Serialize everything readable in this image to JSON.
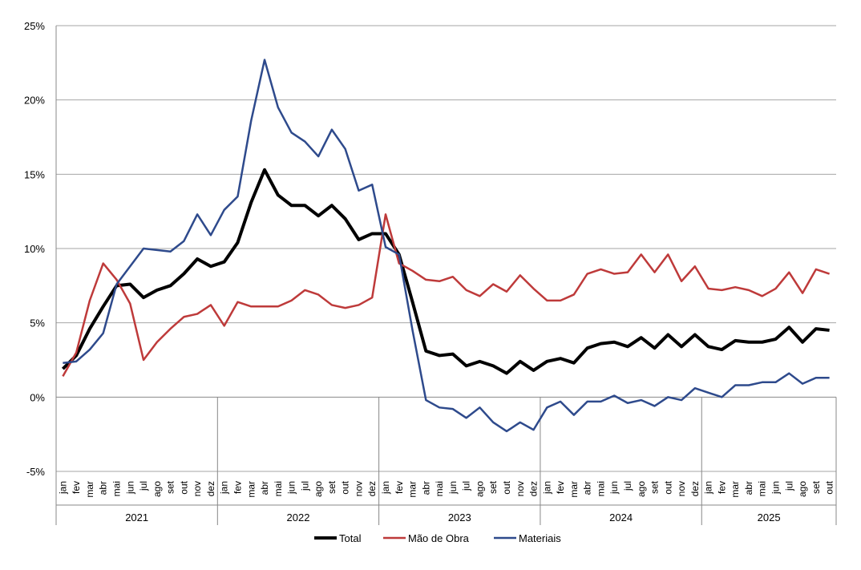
{
  "chart_data": {
    "type": "line",
    "title": "",
    "xlabel": "",
    "ylabel": "",
    "ylim": [
      -5,
      25
    ],
    "yticks": [
      -5,
      0,
      5,
      10,
      15,
      20,
      25
    ],
    "ytick_labels": [
      "-5%",
      "0%",
      "5%",
      "10%",
      "15%",
      "20%",
      "25%"
    ],
    "grid": "horizontal",
    "legend_position": "bottom",
    "years": [
      "2021",
      "2022",
      "2023",
      "2024",
      "2025"
    ],
    "months": [
      "jan",
      "fev",
      "mar",
      "abr",
      "mai",
      "jun",
      "jul",
      "ago",
      "set",
      "out",
      "nov",
      "dez"
    ],
    "months_per_year": [
      12,
      12,
      12,
      12,
      10
    ],
    "series": [
      {
        "name": "Total",
        "color": "#000000",
        "values": [
          1.9,
          2.8,
          4.6,
          6.1,
          7.5,
          7.6,
          6.7,
          7.2,
          7.5,
          8.3,
          9.3,
          8.8,
          9.1,
          10.4,
          13.1,
          15.3,
          13.6,
          12.9,
          12.9,
          12.2,
          12.9,
          12.0,
          10.6,
          11.0,
          11.0,
          9.6,
          6.4,
          3.1,
          2.8,
          2.9,
          2.1,
          2.4,
          2.1,
          1.6,
          2.4,
          1.8,
          2.4,
          2.6,
          2.3,
          3.3,
          3.6,
          3.7,
          3.4,
          4.0,
          3.3,
          4.2,
          3.4,
          4.2,
          3.4,
          3.2,
          3.8,
          3.7,
          3.7,
          3.9,
          4.7,
          3.7,
          4.6,
          4.5
        ]
      },
      {
        "name": "Mão de Obra",
        "color": "#be3a3a",
        "values": [
          1.4,
          3.0,
          6.5,
          9.0,
          7.9,
          6.3,
          2.5,
          3.7,
          4.6,
          5.4,
          5.6,
          6.2,
          4.8,
          6.4,
          6.1,
          6.1,
          6.1,
          6.5,
          7.2,
          6.9,
          6.2,
          6.0,
          6.2,
          6.7,
          12.3,
          9.0,
          8.5,
          7.9,
          7.8,
          8.1,
          7.2,
          6.8,
          7.6,
          7.1,
          8.2,
          7.3,
          6.5,
          6.5,
          6.9,
          8.3,
          8.6,
          8.3,
          8.4,
          9.6,
          8.4,
          9.6,
          7.8,
          8.8,
          7.3,
          7.2,
          7.4,
          7.2,
          6.8,
          7.3,
          8.4,
          7.0,
          8.6,
          8.3
        ]
      },
      {
        "name": "Materiais",
        "color": "#2e4a8c",
        "values": [
          2.3,
          2.4,
          3.2,
          4.3,
          7.6,
          8.8,
          10.0,
          9.9,
          9.8,
          10.5,
          12.3,
          10.9,
          12.6,
          13.5,
          18.6,
          22.7,
          19.5,
          17.8,
          17.2,
          16.2,
          18.0,
          16.7,
          13.9,
          14.3,
          10.1,
          9.6,
          4.5,
          -0.2,
          -0.7,
          -0.8,
          -1.4,
          -0.7,
          -1.7,
          -2.3,
          -1.7,
          -2.2,
          -0.7,
          -0.3,
          -1.2,
          -0.3,
          -0.3,
          0.1,
          -0.4,
          -0.2,
          -0.6,
          0.0,
          -0.2,
          0.6,
          0.3,
          0.0,
          0.8,
          0.8,
          1.0,
          1.0,
          1.6,
          0.9,
          1.3,
          1.3
        ]
      }
    ]
  }
}
